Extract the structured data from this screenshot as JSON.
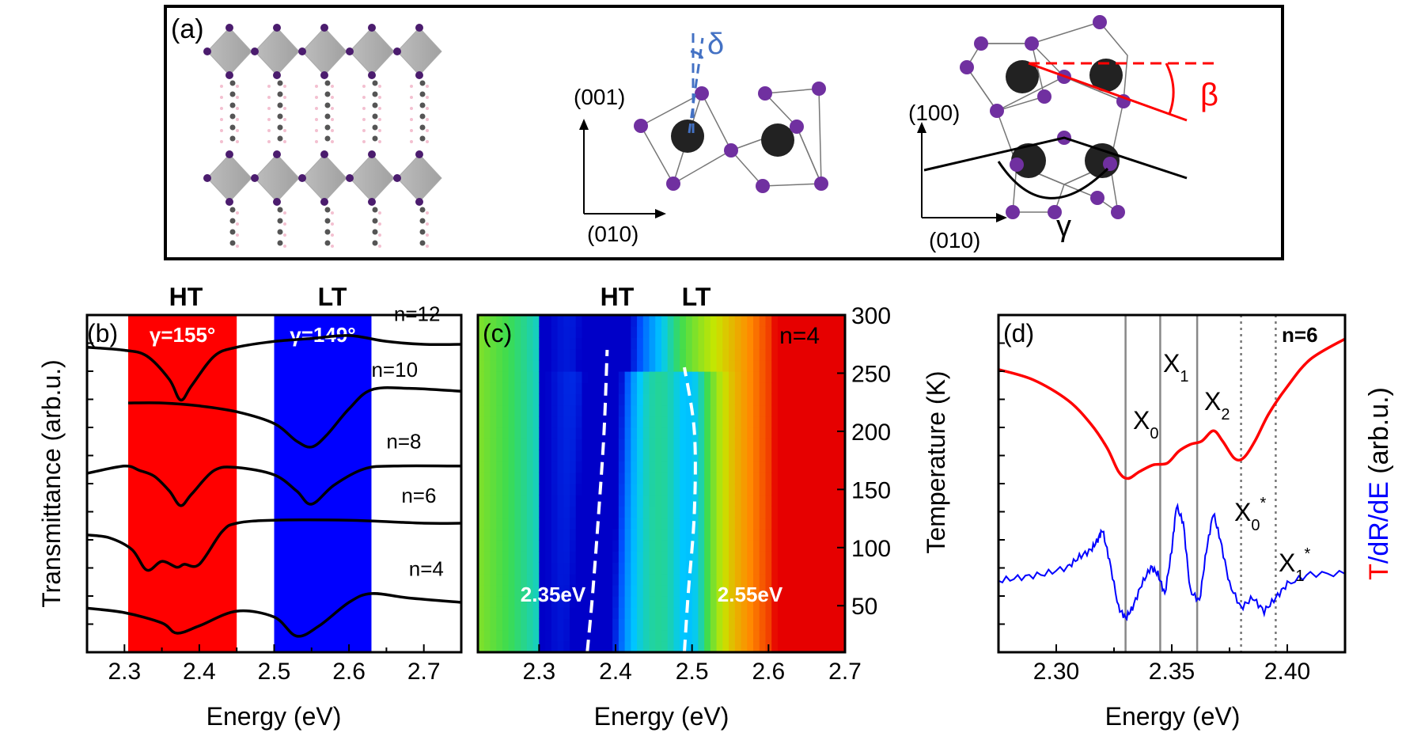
{
  "panel_a": {
    "label": "(a)",
    "delta": "δ",
    "beta": "β",
    "gamma": "γ",
    "mid_axis_v": "(001)",
    "mid_axis_h": "(010)",
    "right_axis_v": "(100)",
    "right_axis_h": "(010)",
    "colors": {
      "iodine": "#7030a0",
      "lead": "#222222",
      "beta": "#ff0000",
      "delta": "#4472c4"
    }
  },
  "chart_data": [
    {
      "type": "line",
      "panel": "(b)",
      "xlabel": "Energy (eV)",
      "ylabel": "Transmittance (arb.u.)",
      "xlim": [
        2.25,
        2.75
      ],
      "xticks": [
        2.3,
        2.4,
        2.5,
        2.6,
        2.7
      ],
      "x_tick_labels": [
        "2.3",
        "2.4",
        "2.5",
        "2.6",
        "2.7"
      ],
      "top_labels": {
        "ht": "HT",
        "lt": "LT"
      },
      "bands": [
        {
          "label": "γ=155°",
          "x0": 2.305,
          "x1": 2.45,
          "color": "#ff0000"
        },
        {
          "label": "γ=149°",
          "x0": 2.5,
          "x1": 2.63,
          "color": "#0000ff"
        }
      ],
      "series": [
        {
          "name": "n=12",
          "x": [
            2.25,
            2.3,
            2.33,
            2.36,
            2.375,
            2.39,
            2.42,
            2.45,
            2.5,
            2.55,
            2.6,
            2.65,
            2.7,
            2.75
          ],
          "y": [
            10.9,
            10.8,
            10.6,
            9.8,
            9.1,
            9.6,
            10.6,
            10.9,
            11.1,
            11.2,
            11.3,
            11.1,
            11.0,
            11.0
          ]
        },
        {
          "name": "n=10",
          "x": [
            2.305,
            2.35,
            2.4,
            2.45,
            2.5,
            2.53,
            2.55,
            2.57,
            2.6,
            2.63,
            2.68,
            2.75
          ],
          "y": [
            9.0,
            9.0,
            8.9,
            8.7,
            8.3,
            7.7,
            7.5,
            7.9,
            8.8,
            9.45,
            9.5,
            9.4
          ]
        },
        {
          "name": "n=8",
          "x": [
            2.25,
            2.3,
            2.32,
            2.34,
            2.36,
            2.375,
            2.39,
            2.42,
            2.45,
            2.5,
            2.53,
            2.55,
            2.58,
            2.62,
            2.66,
            2.75
          ],
          "y": [
            6.6,
            6.85,
            6.7,
            6.5,
            6.0,
            5.5,
            5.9,
            6.7,
            6.8,
            6.55,
            6.0,
            5.55,
            6.2,
            6.75,
            6.85,
            6.85
          ]
        },
        {
          "name": "n=6",
          "x": [
            2.25,
            2.28,
            2.31,
            2.33,
            2.35,
            2.37,
            2.38,
            2.4,
            2.43,
            2.45,
            2.5,
            2.6,
            2.7,
            2.75
          ],
          "y": [
            4.5,
            4.4,
            4.0,
            3.3,
            3.6,
            3.4,
            3.5,
            3.5,
            4.6,
            4.9,
            5.0,
            5.0,
            4.9,
            4.9
          ]
        },
        {
          "name": "n=4",
          "x": [
            2.25,
            2.3,
            2.35,
            2.37,
            2.4,
            2.45,
            2.5,
            2.53,
            2.56,
            2.6,
            2.63,
            2.68,
            2.75
          ],
          "y": [
            2.0,
            1.85,
            1.5,
            1.15,
            1.4,
            1.9,
            1.7,
            1.05,
            1.4,
            2.2,
            2.5,
            2.35,
            2.2
          ]
        }
      ]
    },
    {
      "type": "heatmap",
      "panel": "(c)",
      "xlabel": "Energy (eV)",
      "ylabel": "Temperature (K)",
      "xlim": [
        2.22,
        2.7
      ],
      "ylim": [
        10,
        300
      ],
      "xticks": [
        2.3,
        2.4,
        2.5,
        2.6,
        2.7
      ],
      "x_tick_labels": [
        "2.3",
        "2.4",
        "2.5",
        "2.6",
        "2.7"
      ],
      "yticks": [
        50,
        100,
        150,
        200,
        250,
        300
      ],
      "y_tick_labels": [
        "50",
        "100",
        "150",
        "200",
        "250",
        "300"
      ],
      "top_labels": {
        "ht": "HT",
        "lt": "LT"
      },
      "inset_label": "n=4",
      "annotations": {
        "ht_energy": "2.35eV",
        "lt_energy": "2.55eV"
      },
      "dashed_lines": [
        {
          "name": "HT",
          "points": [
            [
              2.363,
              10
            ],
            [
              2.37,
              60
            ],
            [
              2.378,
              130
            ],
            [
              2.385,
              200
            ],
            [
              2.389,
              270
            ]
          ]
        },
        {
          "name": "LT",
          "points": [
            [
              2.49,
              10
            ],
            [
              2.495,
              60
            ],
            [
              2.503,
              130
            ],
            [
              2.503,
              200
            ],
            [
              2.49,
              255
            ]
          ]
        }
      ]
    },
    {
      "type": "line",
      "panel": "(d)",
      "xlabel": "Energy (eV)",
      "ylabel": "T/dR/dE (arb.u.)",
      "ylabel_parts": {
        "t": "T",
        "rest": "/dR/dE",
        "units": " (arb.u.)"
      },
      "xlim": [
        2.275,
        2.425
      ],
      "xticks": [
        2.3,
        2.35,
        2.4
      ],
      "x_tick_labels": [
        "2.30",
        "2.35",
        "2.40"
      ],
      "inset_label": "n=6",
      "peak_labels": {
        "x0": "X",
        "x0_sub": "0",
        "x1": "X",
        "x1_sub": "1",
        "x2": "X",
        "x2_sub": "2",
        "x0s": "X",
        "x0s_sub": "0",
        "x0s_sup": "*",
        "x1s": "X",
        "x1s_sub": "1",
        "x1s_sup": "*"
      },
      "vlines_solid": [
        2.33,
        2.345,
        2.361
      ],
      "vlines_dotted": [
        2.38,
        2.395
      ],
      "series": [
        {
          "name": "T",
          "color": "#ff0000",
          "x": [
            2.275,
            2.29,
            2.305,
            2.315,
            2.322,
            2.327,
            2.331,
            2.336,
            2.342,
            2.348,
            2.353,
            2.358,
            2.363,
            2.368,
            2.372,
            2.377,
            2.381,
            2.386,
            2.392,
            2.4,
            2.41,
            2.425
          ],
          "y": [
            8.6,
            8.3,
            7.7,
            7.0,
            6.3,
            5.6,
            5.4,
            5.6,
            5.8,
            5.85,
            6.2,
            6.4,
            6.5,
            6.8,
            6.5,
            6.0,
            6.0,
            6.5,
            7.3,
            8.1,
            8.9,
            9.5
          ]
        },
        {
          "name": "dR/dE",
          "color": "#0000ff",
          "x": [
            2.275,
            2.285,
            2.295,
            2.305,
            2.31,
            2.315,
            2.318,
            2.32,
            2.323,
            2.327,
            2.33,
            2.333,
            2.337,
            2.341,
            2.344,
            2.347,
            2.35,
            2.352,
            2.355,
            2.358,
            2.362,
            2.365,
            2.368,
            2.371,
            2.375,
            2.38,
            2.385,
            2.39,
            2.395,
            2.4,
            2.41,
            2.425
          ],
          "y": [
            2.4,
            2.5,
            2.6,
            2.8,
            3.1,
            3.3,
            3.6,
            3.9,
            3.0,
            1.6,
            1.3,
            1.6,
            2.3,
            2.8,
            2.6,
            2.0,
            3.3,
            4.6,
            4.1,
            2.1,
            1.8,
            3.3,
            4.4,
            3.6,
            2.3,
            1.6,
            1.9,
            1.5,
            1.9,
            2.3,
            2.6,
            2.6
          ]
        }
      ]
    }
  ]
}
